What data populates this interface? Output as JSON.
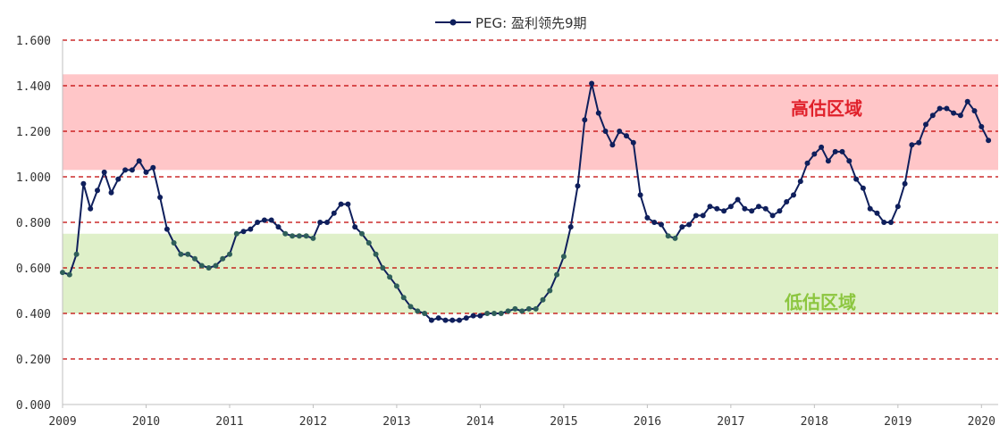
{
  "colors": {
    "line": "#0f1f5c",
    "marker": "#0f1f5c",
    "marker_in_low_zone": "#2f5f5a",
    "high_band": "#ffc6c8",
    "low_band": "#dff0c9",
    "high_label": "#e0202a",
    "low_label": "#8cc63f",
    "gridline": "#c00000",
    "axis": "#bfbfbf"
  },
  "chart_data": {
    "type": "line",
    "title": "",
    "xlabel": "",
    "ylabel": "",
    "ylim": [
      0,
      1.6
    ],
    "xlim": [
      2009.0,
      2020.2
    ],
    "grid": "dashed horizontal",
    "legend_placement": "top-center",
    "y_ticks": [
      "0.000",
      "0.200",
      "0.400",
      "0.600",
      "0.800",
      "1.000",
      "1.200",
      "1.400",
      "1.600"
    ],
    "x_ticks": [
      "2009",
      "2010",
      "2011",
      "2012",
      "2013",
      "2014",
      "2015",
      "2016",
      "2017",
      "2018",
      "2019",
      "2020"
    ],
    "bands": [
      {
        "label": "高估区域",
        "from": 1.03,
        "to": 1.45
      },
      {
        "label": "低估区域",
        "from": 0.4,
        "to": 0.75
      }
    ],
    "series": [
      {
        "name": "PEG: 盈利领先9期",
        "x_start": 2009.0,
        "x_step": 0.0833333,
        "values": [
          0.58,
          0.57,
          0.66,
          0.97,
          0.86,
          0.94,
          1.02,
          0.93,
          0.99,
          1.03,
          1.03,
          1.07,
          1.02,
          1.04,
          0.91,
          0.77,
          0.71,
          0.66,
          0.66,
          0.64,
          0.61,
          0.6,
          0.61,
          0.64,
          0.66,
          0.75,
          0.76,
          0.77,
          0.8,
          0.81,
          0.81,
          0.78,
          0.75,
          0.74,
          0.74,
          0.74,
          0.73,
          0.8,
          0.8,
          0.84,
          0.88,
          0.88,
          0.78,
          0.75,
          0.71,
          0.66,
          0.6,
          0.56,
          0.52,
          0.47,
          0.43,
          0.41,
          0.4,
          0.37,
          0.38,
          0.37,
          0.37,
          0.37,
          0.38,
          0.39,
          0.39,
          0.4,
          0.4,
          0.4,
          0.41,
          0.42,
          0.41,
          0.42,
          0.42,
          0.46,
          0.5,
          0.57,
          0.65,
          0.78,
          0.96,
          1.25,
          1.41,
          1.28,
          1.2,
          1.14,
          1.2,
          1.18,
          1.15,
          0.92,
          0.82,
          0.8,
          0.79,
          0.74,
          0.73,
          0.78,
          0.79,
          0.83,
          0.83,
          0.87,
          0.86,
          0.85,
          0.87,
          0.9,
          0.86,
          0.85,
          0.87,
          0.86,
          0.83,
          0.85,
          0.89,
          0.92,
          0.98,
          1.06,
          1.1,
          1.13,
          1.07,
          1.11,
          1.11,
          1.07,
          0.99,
          0.95,
          0.86,
          0.84,
          0.8,
          0.8,
          0.87,
          0.97,
          1.14,
          1.15,
          1.23,
          1.27,
          1.3,
          1.3,
          1.28,
          1.27,
          1.33,
          1.29,
          1.22,
          1.16
        ]
      }
    ]
  }
}
